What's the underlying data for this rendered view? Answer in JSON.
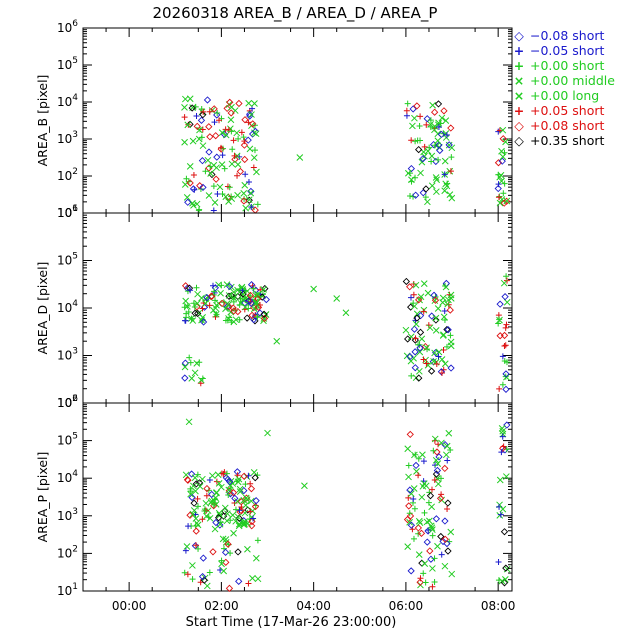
{
  "chart_data": {
    "type": "scatter",
    "title": "20260318 AREA_B / AREA_D / AREA_P",
    "xlabel": "Start Time (17-Mar-26 23:00:00)",
    "x_ticks": [
      "00:00",
      "02:00",
      "04:00",
      "06:00",
      "08:00"
    ],
    "x_range_hours": [
      0,
      9.3
    ],
    "x_tick_hours": [
      1,
      3,
      5,
      7,
      9
    ],
    "legend_position": "right",
    "series": [
      {
        "label": "−0.08 short",
        "color": "#1a1acc",
        "symbol": "diamond"
      },
      {
        "label": "−0.05 short",
        "color": "#1a1acc",
        "symbol": "plus"
      },
      {
        "label": "+0.00 short",
        "color": "#22cc22",
        "symbol": "plus"
      },
      {
        "label": "+0.00 middle",
        "color": "#22cc22",
        "symbol": "cross"
      },
      {
        "label": "+0.00 long",
        "color": "#22cc22",
        "symbol": "cross"
      },
      {
        "label": "+0.05 short",
        "color": "#dd1111",
        "symbol": "plus"
      },
      {
        "label": "+0.08 short",
        "color": "#dd1111",
        "symbol": "diamond"
      },
      {
        "label": "+0.35 short",
        "color": "#000000",
        "symbol": "diamond"
      }
    ],
    "panels": [
      {
        "ylabel": "AREA_B [pixel]",
        "ylog": [
          1,
          6
        ],
        "y_tick_exp": [
          "1",
          "2",
          "3",
          "4",
          "5",
          "6"
        ],
        "clusters": [
          {
            "x": [
              2.2,
              3.8
            ],
            "y": [
              1,
              4.1
            ],
            "n": 160
          },
          {
            "x": [
              7.0,
              8.0
            ],
            "y": [
              1.3,
              4.0
            ],
            "n": 90
          },
          {
            "x": [
              9.0,
              9.2
            ],
            "y": [
              1.2,
              3.3
            ],
            "n": 25
          }
        ],
        "points": [
          {
            "x": 4.7,
            "y": 2.5
          }
        ]
      },
      {
        "ylabel": "AREA_D [pixel]",
        "ylog": [
          2,
          6
        ],
        "y_tick_exp": [
          "2",
          "3",
          "4",
          "5",
          "6"
        ],
        "clusters": [
          {
            "x": [
              2.2,
              4.0
            ],
            "y": [
              3.7,
              4.5
            ],
            "n": 160
          },
          {
            "x": [
              2.2,
              2.6
            ],
            "y": [
              2.4,
              3.0
            ],
            "n": 12
          },
          {
            "x": [
              7.0,
              8.0
            ],
            "y": [
              2.5,
              4.6
            ],
            "n": 100
          },
          {
            "x": [
              9.0,
              9.2
            ],
            "y": [
              2.2,
              4.9
            ],
            "n": 25
          }
        ],
        "points": [
          {
            "x": 4.2,
            "y": 3.3
          },
          {
            "x": 5.0,
            "y": 4.4
          },
          {
            "x": 5.5,
            "y": 4.2
          },
          {
            "x": 5.7,
            "y": 3.9
          }
        ]
      },
      {
        "ylabel": "AREA_P [pixel]",
        "ylog": [
          1,
          6
        ],
        "y_tick_exp": [
          "1",
          "2",
          "3",
          "4",
          "5",
          "6"
        ],
        "clusters": [
          {
            "x": [
              2.2,
              3.8
            ],
            "y": [
              2.7,
              4.2
            ],
            "n": 140
          },
          {
            "x": [
              2.2,
              3.8
            ],
            "y": [
              0.9,
              3.0
            ],
            "n": 50
          },
          {
            "x": [
              7.0,
              8.0
            ],
            "y": [
              1.0,
              5.2
            ],
            "n": 110
          },
          {
            "x": [
              9.0,
              9.2
            ],
            "y": [
              1.2,
              5.6
            ],
            "n": 25
          }
        ],
        "points": [
          {
            "x": 2.3,
            "y": 5.5
          },
          {
            "x": 4.0,
            "y": 5.2
          },
          {
            "x": 4.8,
            "y": 3.8
          }
        ]
      }
    ]
  }
}
